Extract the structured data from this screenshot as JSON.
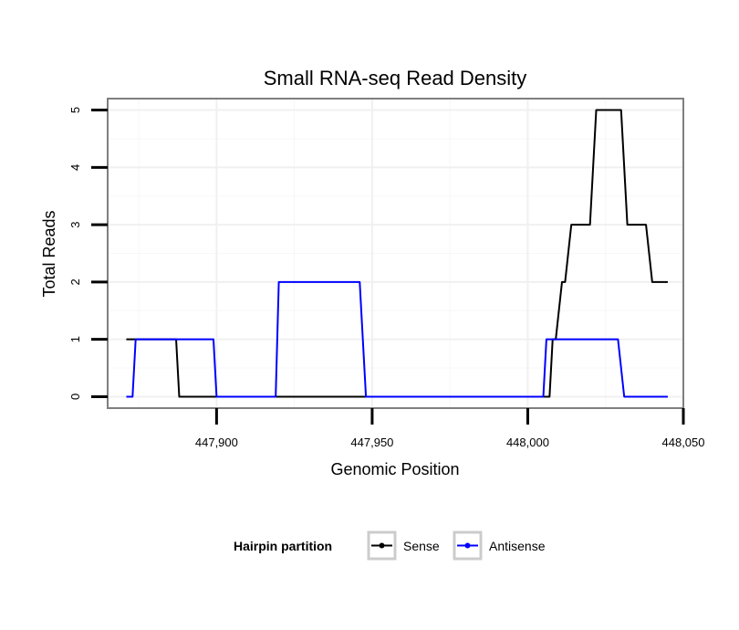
{
  "chart_data": {
    "type": "line",
    "title": "Small RNA-seq Read Density",
    "xlabel": "Genomic Position",
    "ylabel": "Total Reads",
    "xlim": [
      447865,
      448050
    ],
    "ylim": [
      -0.2,
      5.2
    ],
    "x_ticks": [
      447900,
      447950,
      448000,
      448050
    ],
    "x_tick_labels": [
      "447,900",
      "447,950",
      "448,000",
      "448,050"
    ],
    "y_ticks": [
      0,
      1,
      2,
      3,
      4,
      5
    ],
    "y_tick_labels": [
      "0",
      "1",
      "2",
      "3",
      "4",
      "5"
    ],
    "grid": true,
    "legend": {
      "title": "Hairpin partition",
      "position": "bottom"
    },
    "series": [
      {
        "name": "Sense",
        "color": "#000000",
        "x": [
          447871,
          447886,
          447887,
          447888,
          448007,
          448008,
          448009,
          448011,
          448012,
          448014,
          448015,
          448020,
          448022,
          448030,
          448032,
          448038,
          448040,
          448045
        ],
        "y": [
          1,
          1,
          1,
          0,
          0,
          1,
          1,
          2,
          2,
          3,
          3,
          3,
          5,
          5,
          3,
          3,
          2,
          2
        ]
      },
      {
        "name": "Antisense",
        "color": "#0000ff",
        "x": [
          447871,
          447873,
          447874,
          447899,
          447900,
          447919,
          447920,
          447946,
          447948,
          448005,
          448006,
          448029,
          448031,
          448045
        ],
        "y": [
          0,
          0,
          1,
          1,
          0,
          0,
          2,
          2,
          0,
          0,
          1,
          1,
          0,
          0
        ]
      }
    ]
  }
}
